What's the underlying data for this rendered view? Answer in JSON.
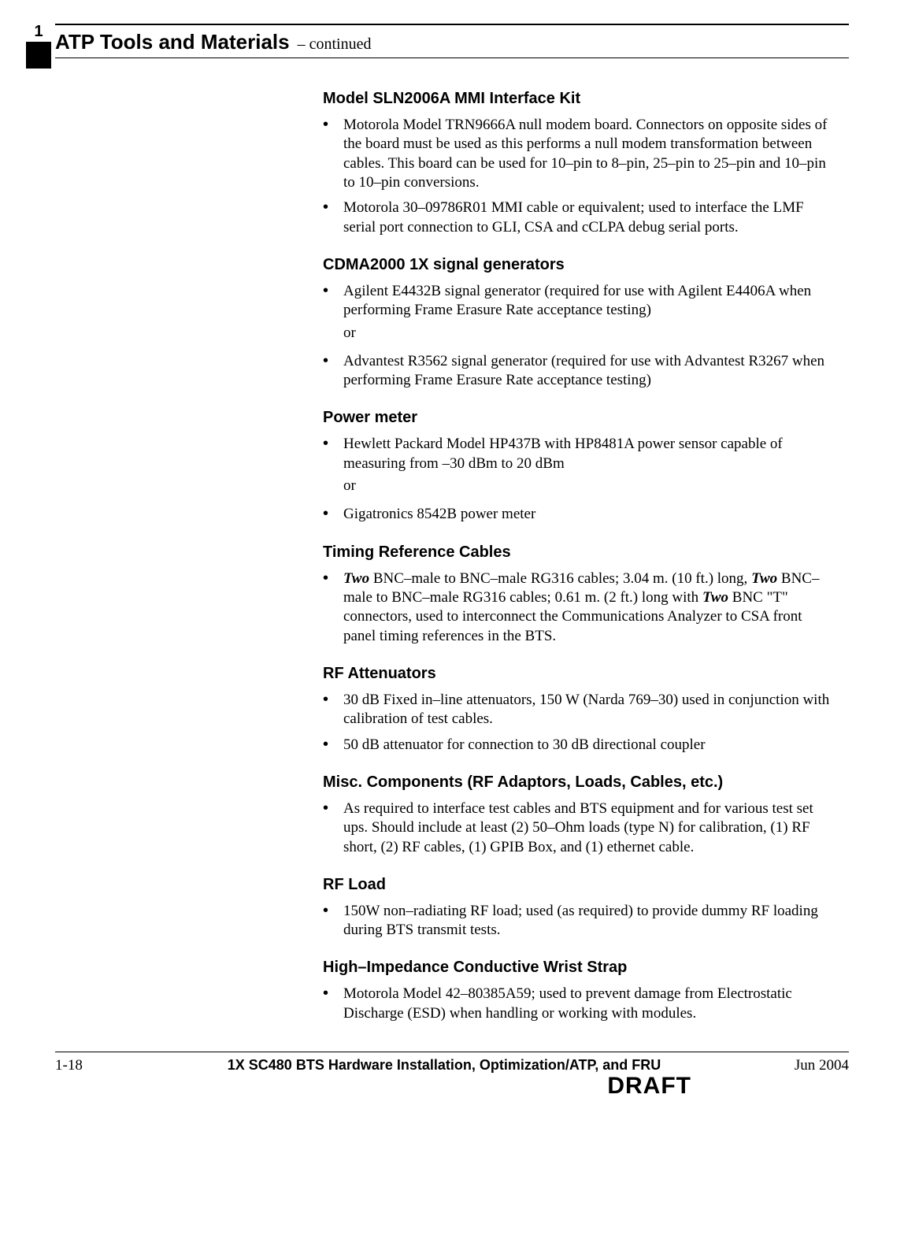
{
  "tab": {
    "number": "1"
  },
  "header": {
    "title": "ATP Tools and Materials",
    "continued": " – continued"
  },
  "sections": {
    "s1": {
      "heading": "Model SLN2006A MMI Interface Kit",
      "b1": "Motorola Model TRN9666A null modem board. Connectors on opposite sides of the board must be used as this performs a null modem transformation between cables. This board can be used for 10–pin to 8–pin, 25–pin to 25–pin and 10–pin to 10–pin conversions.",
      "b2": "Motorola 30–09786R01 MMI cable or equivalent; used to interface the LMF serial port connection to GLI, CSA and cCLPA debug serial ports."
    },
    "s2": {
      "heading": "CDMA2000 1X signal generators",
      "b1": "Agilent E4432B signal generator (required for use with Agilent E4406A when performing Frame Erasure Rate acceptance testing)",
      "or": "or",
      "b2": "Advantest R3562 signal generator (required for use with Advantest R3267 when performing Frame Erasure Rate acceptance testing)"
    },
    "s3": {
      "heading": "Power meter",
      "b1": "Hewlett Packard Model HP437B with HP8481A power sensor capable of measuring from –30 dBm to 20 dBm",
      "or": "or",
      "b2": "Gigatronics 8542B power meter"
    },
    "s4": {
      "heading": "Timing Reference Cables",
      "b1_pre": "Two",
      "b1_mid1": " BNC–male to BNC–male RG316 cables; 3.04 m. (10 ft.) long, ",
      "b1_two2": "Two",
      "b1_mid2": " BNC–male to BNC–male RG316 cables; 0.61 m. (2 ft.) long with ",
      "b1_two3": "Two",
      "b1_post": " BNC \"T\" connectors, used to interconnect the Communications Analyzer to CSA front panel timing references in the BTS."
    },
    "s5": {
      "heading": "RF Attenuators",
      "b1": "30 dB Fixed in–line attenuators, 150 W (Narda 769–30) used in conjunction with calibration of test cables.",
      "b2": "50 dB attenuator for connection to 30 dB directional coupler"
    },
    "s6": {
      "heading": "Misc. Components (RF Adaptors, Loads, Cables, etc.)",
      "b1": "As required to interface test cables and BTS equipment and for various test set ups. Should include at least (2) 50–Ohm loads (type N) for calibration, (1) RF short, (2) RF cables, (1) GPIB Box, and (1) ethernet cable."
    },
    "s7": {
      "heading": "RF Load",
      "b1": "150W non–radiating RF load; used (as required) to provide dummy RF loading during BTS transmit tests."
    },
    "s8": {
      "heading": "High–Impedance Conductive Wrist Strap",
      "b1": "Motorola Model 42–80385A59; used to prevent damage from Electrostatic Discharge (ESD) when handling or working with modules."
    }
  },
  "footer": {
    "page": "1-18",
    "center": "1X SC480 BTS Hardware Installation, Optimization/ATP, and FRU",
    "date": "Jun 2004",
    "draft": "DRAFT"
  }
}
